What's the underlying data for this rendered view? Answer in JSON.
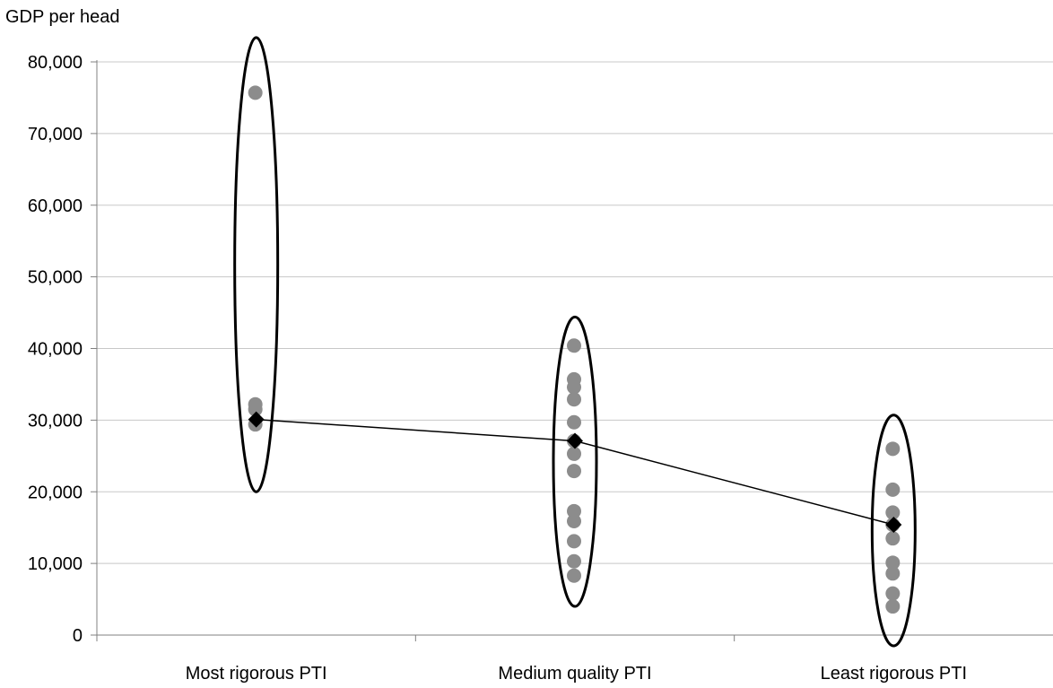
{
  "chart_data": {
    "type": "scatter",
    "ylabel": "GDP per head",
    "categories": [
      "Most rigorous PTI",
      "Medium quality PTI",
      "Least rigorous PTI"
    ],
    "ylim": [
      0,
      80000
    ],
    "yticks": [
      0,
      10000,
      20000,
      30000,
      40000,
      50000,
      60000,
      70000,
      80000
    ],
    "ytick_labels": [
      "0",
      "10,000",
      "20,000",
      "30,000",
      "40,000",
      "50,000",
      "60,000",
      "70,000",
      "80,000"
    ],
    "grid": true,
    "legend": "none",
    "series": [
      {
        "kind": "points",
        "color": "#8c8c8c",
        "points": [
          [
            0,
            75700
          ],
          [
            0,
            32200
          ],
          [
            0,
            31500
          ],
          [
            0,
            29400
          ],
          [
            1,
            40400
          ],
          [
            1,
            35700
          ],
          [
            1,
            34600
          ],
          [
            1,
            32900
          ],
          [
            1,
            29700
          ],
          [
            1,
            27100
          ],
          [
            1,
            25300
          ],
          [
            1,
            22900
          ],
          [
            1,
            17300
          ],
          [
            1,
            15900
          ],
          [
            1,
            13100
          ],
          [
            1,
            10300
          ],
          [
            1,
            8300
          ],
          [
            2,
            26000
          ],
          [
            2,
            20300
          ],
          [
            2,
            17100
          ],
          [
            2,
            15400
          ],
          [
            2,
            13500
          ],
          [
            2,
            10100
          ],
          [
            2,
            8600
          ],
          [
            2,
            5800
          ],
          [
            2,
            4000
          ]
        ]
      },
      {
        "kind": "average",
        "color": "#000000",
        "marker": "diamond",
        "values": [
          30100,
          27100,
          15400
        ]
      }
    ],
    "group_outlines": [
      {
        "category": 0,
        "range": [
          20000,
          83400
        ]
      },
      {
        "category": 1,
        "range": [
          4000,
          44400
        ]
      },
      {
        "category": 2,
        "range": [
          -1500,
          30700
        ]
      }
    ]
  }
}
